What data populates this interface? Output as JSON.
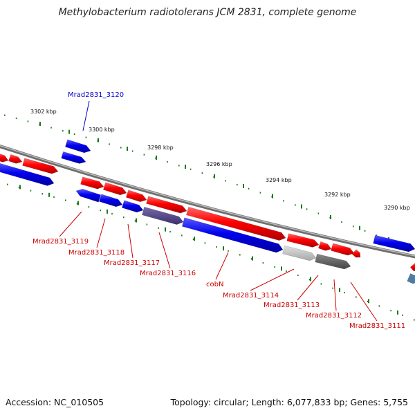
{
  "title": "Methylobacterium radiotolerans JCM 2831, complete genome",
  "footer": {
    "accession": "Accession: NC_010505",
    "summary": "Topology: circular; Length: 6,077,833 bp; Genes: 5,755"
  },
  "colors": {
    "forward": "#ff0000",
    "reverse": "#0000ff",
    "forward_dark": "#c00000",
    "reverse_dark": "#0000b0",
    "backbone": "#808080",
    "tick": "#1a7a1a",
    "label_red": "#cc0000",
    "label_blue": "#0000cc"
  },
  "ticks": [
    {
      "label": "3302 kbp"
    },
    {
      "label": "3300 kbp"
    },
    {
      "label": "3298 kbp"
    },
    {
      "label": "3296 kbp"
    },
    {
      "label": "3294 kbp"
    },
    {
      "label": "3292 kbp"
    },
    {
      "label": "3290 kbp"
    }
  ],
  "gene_labels": [
    {
      "text": "Mrad2831_3120",
      "color": "blue"
    },
    {
      "text": "Mrad2831_3119",
      "color": "red"
    },
    {
      "text": "Mrad2831_3118",
      "color": "red"
    },
    {
      "text": "Mrad2831_3117",
      "color": "red"
    },
    {
      "text": "Mrad2831_3116",
      "color": "red"
    },
    {
      "text": "cobN",
      "color": "red"
    },
    {
      "text": "Mrad2831_3114",
      "color": "red"
    },
    {
      "text": "Mrad2831_3113",
      "color": "red"
    },
    {
      "text": "Mrad2831_3112",
      "color": "red"
    },
    {
      "text": "Mrad2831_3111",
      "color": "red"
    }
  ]
}
